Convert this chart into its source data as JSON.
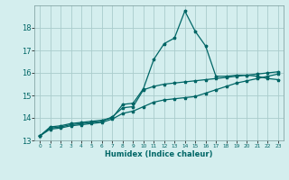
{
  "xlabel": "Humidex (Indice chaleur)",
  "xlim": [
    -0.5,
    23.5
  ],
  "ylim": [
    13,
    19
  ],
  "yticks": [
    13,
    14,
    15,
    16,
    17,
    18
  ],
  "xticks": [
    0,
    1,
    2,
    3,
    4,
    5,
    6,
    7,
    8,
    9,
    10,
    11,
    12,
    13,
    14,
    15,
    16,
    17,
    18,
    19,
    20,
    21,
    22,
    23
  ],
  "bg_color": "#d4eeee",
  "grid_color": "#aacccc",
  "line_color": "#006666",
  "line1_x": [
    0,
    1,
    2,
    3,
    4,
    5,
    6,
    7,
    8,
    9,
    10,
    11,
    12,
    13,
    14,
    15,
    16,
    17,
    18,
    19,
    20,
    21,
    22,
    23
  ],
  "line1_y": [
    13.2,
    13.6,
    13.65,
    13.75,
    13.8,
    13.85,
    13.9,
    14.0,
    14.6,
    14.65,
    15.3,
    16.6,
    17.3,
    17.55,
    18.75,
    17.85,
    17.2,
    15.85,
    15.85,
    15.9,
    15.9,
    15.85,
    15.75,
    15.7
  ],
  "line2_x": [
    0,
    1,
    2,
    3,
    4,
    5,
    6,
    7,
    8,
    9,
    10,
    11,
    12,
    13,
    14,
    15,
    16,
    17,
    18,
    19,
    20,
    21,
    22,
    23
  ],
  "line2_y": [
    13.2,
    13.55,
    13.6,
    13.7,
    13.75,
    13.8,
    13.85,
    14.05,
    14.45,
    14.5,
    15.25,
    15.4,
    15.5,
    15.55,
    15.6,
    15.65,
    15.7,
    15.75,
    15.8,
    15.85,
    15.9,
    15.95,
    16.0,
    16.05
  ],
  "line3_x": [
    0,
    1,
    2,
    3,
    4,
    5,
    6,
    7,
    8,
    9,
    10,
    11,
    12,
    13,
    14,
    15,
    16,
    17,
    18,
    19,
    20,
    21,
    22,
    23
  ],
  "line3_y": [
    13.2,
    13.5,
    13.55,
    13.65,
    13.7,
    13.75,
    13.8,
    13.95,
    14.2,
    14.3,
    14.5,
    14.7,
    14.8,
    14.85,
    14.9,
    14.95,
    15.1,
    15.25,
    15.4,
    15.55,
    15.65,
    15.75,
    15.85,
    15.95
  ]
}
